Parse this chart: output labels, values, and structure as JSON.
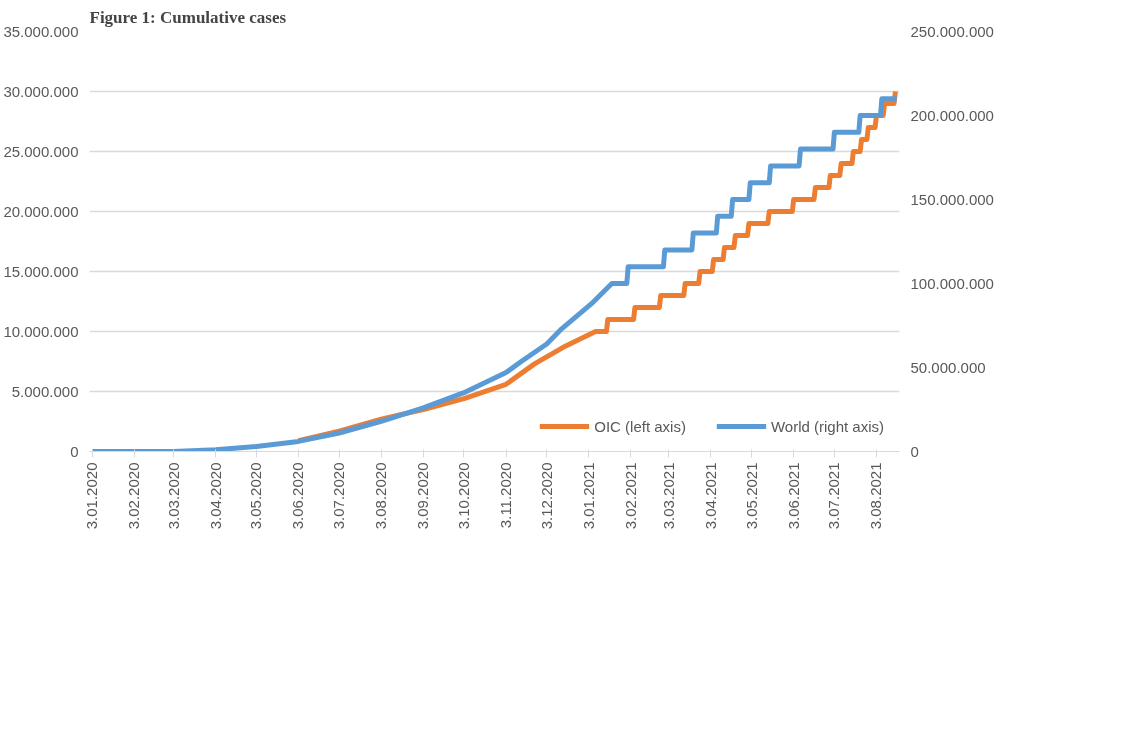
{
  "chart_data": {
    "type": "line",
    "title": "Figure 1: Cumulative cases",
    "legend": "bottom right",
    "grid": "y",
    "line_style": "solid",
    "marker": "none",
    "xlim": [
      "2020-01-01",
      "2021-08-20"
    ],
    "xticks": [
      {
        "value": "2020-01-03",
        "label": "3.01.2020"
      },
      {
        "value": "2020-02-03",
        "label": "3.02.2020"
      },
      {
        "value": "2020-03-03",
        "label": "3.03.2020"
      },
      {
        "value": "2020-04-03",
        "label": "3.04.2020"
      },
      {
        "value": "2020-05-03",
        "label": "3.05.2020"
      },
      {
        "value": "2020-06-03",
        "label": "3.06.2020"
      },
      {
        "value": "2020-07-03",
        "label": "3.07.2020"
      },
      {
        "value": "2020-08-03",
        "label": "3.08.2020"
      },
      {
        "value": "2020-09-03",
        "label": "3.09.2020"
      },
      {
        "value": "2020-10-03",
        "label": "3.10.2020"
      },
      {
        "value": "2020-11-03",
        "label": "3.11.2020"
      },
      {
        "value": "2020-12-03",
        "label": "3.12.2020"
      },
      {
        "value": "2021-01-03",
        "label": "3.01.2021"
      },
      {
        "value": "2021-02-03",
        "label": "3.02.2021"
      },
      {
        "value": "2021-03-03",
        "label": "3.03.2021"
      },
      {
        "value": "2021-04-03",
        "label": "3.04.2021"
      },
      {
        "value": "2021-05-03",
        "label": "3.05.2021"
      },
      {
        "value": "2021-06-03",
        "label": "3.06.2021"
      },
      {
        "value": "2021-07-03",
        "label": "3.07.2021"
      },
      {
        "value": "2021-08-03",
        "label": "3.08.2021"
      }
    ],
    "ylim": [
      0,
      35000000
    ],
    "yticks": [
      {
        "value": 0,
        "label": "0"
      },
      {
        "value": 5000000,
        "label": "5.000.000"
      },
      {
        "value": 10000000,
        "label": "10.000.000"
      },
      {
        "value": 15000000,
        "label": "15.000.000"
      },
      {
        "value": 20000000,
        "label": "20.000.000"
      },
      {
        "value": 25000000,
        "label": "25.000.000"
      },
      {
        "value": 30000000,
        "label": "30.000.000"
      },
      {
        "value": 35000000,
        "label": "35.000.000"
      }
    ],
    "y2lim": [
      0,
      250000000
    ],
    "y2ticks": [
      {
        "value": 0,
        "label": "0"
      },
      {
        "value": 50000000,
        "label": "50.000.000"
      },
      {
        "value": 100000000,
        "label": "100.000.000"
      },
      {
        "value": 150000000,
        "label": "150.000.000"
      },
      {
        "value": 200000000,
        "label": "200.000.000"
      },
      {
        "value": 250000000,
        "label": "250.000.000"
      }
    ],
    "series": [
      {
        "name": "OIC (left axis)",
        "color": "#ed7d31",
        "x": [
          "2020-06-03",
          "2020-07-03",
          "2020-08-03",
          "2020-09-03",
          "2020-10-03",
          "2020-11-03",
          "2020-11-24",
          "2020-12-17",
          "2021-01-08",
          "2021-01-16",
          "2021-01-17",
          "2021-02-05",
          "2021-02-06",
          "2021-02-24",
          "2021-02-25",
          "2021-03-14",
          "2021-03-15",
          "2021-03-25",
          "2021-03-26",
          "2021-04-04",
          "2021-04-05",
          "2021-04-12",
          "2021-04-13",
          "2021-04-20",
          "2021-04-21",
          "2021-04-30",
          "2021-05-01",
          "2021-05-15",
          "2021-05-16",
          "2021-06-02",
          "2021-06-03",
          "2021-06-18",
          "2021-06-19",
          "2021-06-29",
          "2021-06-30",
          "2021-07-07",
          "2021-07-08",
          "2021-07-16",
          "2021-07-17",
          "2021-07-22",
          "2021-07-23",
          "2021-07-27",
          "2021-07-28",
          "2021-08-02",
          "2021-08-03",
          "2021-08-08",
          "2021-08-09",
          "2021-08-16",
          "2021-08-17"
        ],
        "values": [
          900000,
          1700000,
          2700000,
          3500000,
          4400000,
          5600000,
          7300000,
          8800000,
          10000000,
          10000000,
          11000000,
          11000000,
          12000000,
          12000000,
          13000000,
          13000000,
          14000000,
          14000000,
          15000000,
          15000000,
          16000000,
          16000000,
          17000000,
          17000000,
          18000000,
          18000000,
          19000000,
          19000000,
          20000000,
          20000000,
          21000000,
          21000000,
          22000000,
          22000000,
          23000000,
          23000000,
          24000000,
          24000000,
          25000000,
          25000000,
          26000000,
          26000000,
          27000000,
          27000000,
          28000000,
          28000000,
          29000000,
          29000000,
          30000000
        ]
      },
      {
        "name": "World (right axis)",
        "color": "#5b9bd5",
        "axis": "y2",
        "x": [
          "2020-01-03",
          "2020-03-03",
          "2020-04-03",
          "2020-05-03",
          "2020-06-03",
          "2020-07-03",
          "2020-08-03",
          "2020-09-03",
          "2020-10-03",
          "2020-11-03",
          "2020-11-15",
          "2020-12-03",
          "2020-12-14",
          "2021-01-05",
          "2021-01-20",
          "2021-01-31",
          "2021-02-01",
          "2021-02-27",
          "2021-02-28",
          "2021-03-20",
          "2021-03-21",
          "2021-04-07",
          "2021-04-08",
          "2021-04-18",
          "2021-04-19",
          "2021-05-01",
          "2021-05-02",
          "2021-05-16",
          "2021-05-17",
          "2021-06-07",
          "2021-06-08",
          "2021-07-02",
          "2021-07-03",
          "2021-07-21",
          "2021-07-22",
          "2021-08-06",
          "2021-08-07",
          "2021-08-18"
        ],
        "values": [
          0,
          0,
          1000000,
          3000000,
          6000000,
          11000000,
          18000000,
          26000000,
          35000000,
          47000000,
          54000000,
          64000000,
          73000000,
          88000000,
          100000000,
          100000000,
          110000000,
          110000000,
          120000000,
          120000000,
          130000000,
          130000000,
          140000000,
          140000000,
          150000000,
          150000000,
          160000000,
          160000000,
          170000000,
          170000000,
          180000000,
          180000000,
          190000000,
          190000000,
          200000000,
          200000000,
          210000000,
          210000000
        ]
      }
    ]
  }
}
